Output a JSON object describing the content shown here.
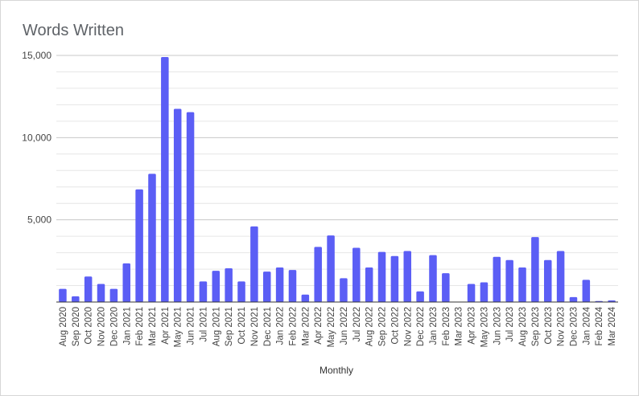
{
  "chart_data": {
    "type": "bar",
    "title": "Words Written",
    "xlabel": "Monthly",
    "ylabel": "",
    "ylim": [
      0,
      15000
    ],
    "yticks": [
      "15,000",
      "10,000",
      "5,000"
    ],
    "ytick_values": [
      15000,
      10000,
      5000
    ],
    "grid": true,
    "bar_color": "#5b5ef5",
    "categories": [
      "Aug 2020",
      "Sep 2020",
      "Oct 2020",
      "Nov 2020",
      "Dec 2020",
      "Jan 2021",
      "Feb 2021",
      "Mar 2021",
      "Apr 2021",
      "May 2021",
      "Jun 2021",
      "Jul 2021",
      "Aug 2021",
      "Sep 2021",
      "Oct 2021",
      "Nov 2021",
      "Dec 2021",
      "Jan 2022",
      "Feb 2022",
      "Mar 2022",
      "Apr 2022",
      "May 2022",
      "Jun 2022",
      "Jul 2022",
      "Aug 2022",
      "Sep 2022",
      "Oct 2022",
      "Nov 2022",
      "Dec 2022",
      "Jan 2023",
      "Feb 2023",
      "Mar 2023",
      "Apr 2023",
      "May 2023",
      "Jun 2023",
      "Jul 2023",
      "Aug 2023",
      "Sep 2023",
      "Oct 2023",
      "Nov 2023",
      "Dec 2023",
      "Jan 2024",
      "Feb 2024",
      "Mar 2024"
    ],
    "values": [
      800,
      350,
      1550,
      1100,
      800,
      2350,
      6850,
      7800,
      14900,
      11750,
      11550,
      1250,
      1900,
      2050,
      1250,
      4600,
      1850,
      2100,
      1950,
      450,
      3350,
      4050,
      1450,
      3300,
      2100,
      3050,
      2800,
      3100,
      650,
      2850,
      1750,
      0,
      1100,
      1200,
      2750,
      2550,
      2100,
      3950,
      2550,
      3100,
      300,
      1350,
      60,
      100
    ]
  }
}
